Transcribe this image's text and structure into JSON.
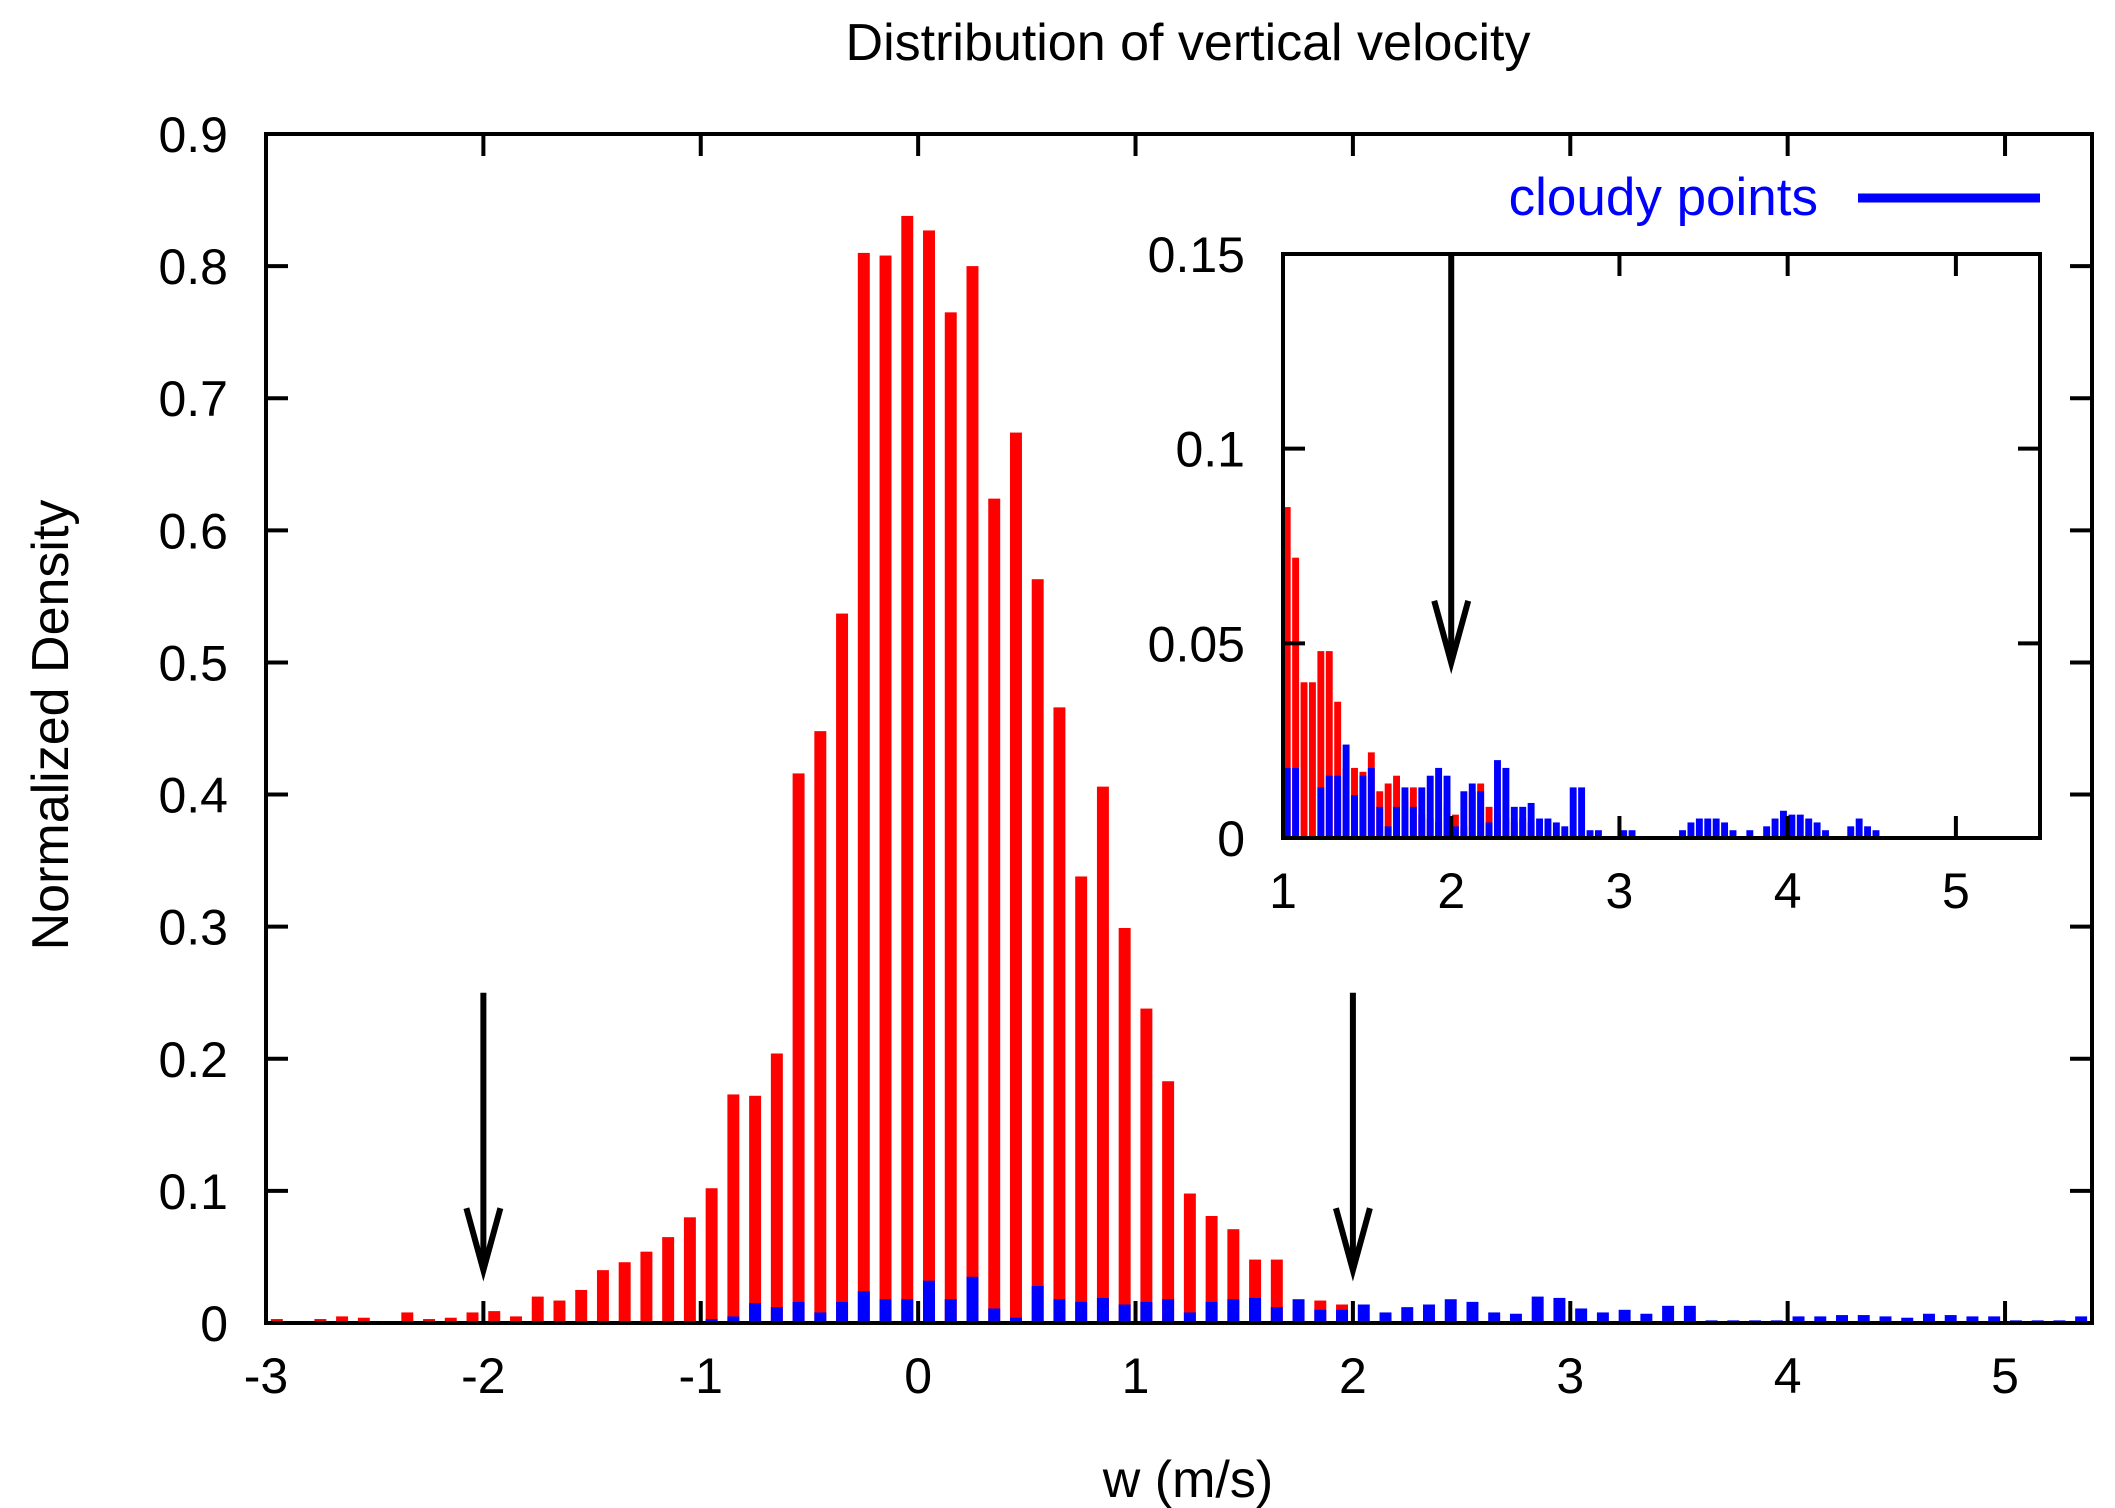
{
  "chart_data": [
    {
      "type": "bar",
      "title": "Distribution of vertical velocity",
      "xlabel": "w (m/s)",
      "ylabel": "Normalized Density",
      "xlim": [
        -3,
        5.4
      ],
      "ylim": [
        0,
        0.9
      ],
      "xticks": [
        -3,
        -2,
        -1,
        0,
        1,
        2,
        3,
        4,
        5
      ],
      "xtick_labels": [
        "-3",
        "-2",
        "-1",
        "0",
        "1",
        "2",
        "3",
        "4",
        "5"
      ],
      "yticks": [
        0,
        0.1,
        0.2,
        0.3,
        0.4,
        0.5,
        0.6,
        0.7,
        0.8,
        0.9
      ],
      "ytick_labels": [
        "0",
        "0.1",
        "0.2",
        "0.3",
        "0.4",
        "0.5",
        "0.6",
        "0.7",
        "0.8",
        "0.9"
      ],
      "bin_width": 0.1,
      "grid": false,
      "legend_position": "top-right",
      "series": [
        {
          "color": "#ff0000",
          "x": [
            -2.95,
            -2.75,
            -2.65,
            -2.55,
            -2.35,
            -2.25,
            -2.15,
            -2.05,
            -1.95,
            -1.85,
            -1.75,
            -1.65,
            -1.55,
            -1.45,
            -1.35,
            -1.25,
            -1.15,
            -1.05,
            -0.95,
            -0.85,
            -0.75,
            -0.65,
            -0.55,
            -0.45,
            -0.35,
            -0.25,
            -0.15,
            -0.05,
            0.05,
            0.15,
            0.25,
            0.35,
            0.45,
            0.55,
            0.65,
            0.75,
            0.85,
            0.95,
            1.05,
            1.15,
            1.25,
            1.35,
            1.45,
            1.55,
            1.65,
            1.75,
            1.85,
            1.95
          ],
          "values": [
            0.003,
            0.003,
            0.005,
            0.004,
            0.008,
            0.003,
            0.004,
            0.008,
            0.009,
            0.005,
            0.02,
            0.017,
            0.025,
            0.04,
            0.046,
            0.054,
            0.065,
            0.08,
            0.102,
            0.173,
            0.172,
            0.204,
            0.416,
            0.448,
            0.537,
            0.81,
            0.808,
            0.838,
            0.827,
            0.765,
            0.8,
            0.624,
            0.674,
            0.563,
            0.466,
            0.338,
            0.406,
            0.299,
            0.238,
            0.183,
            0.098,
            0.081,
            0.071,
            0.048,
            0.048,
            0.011,
            0.017,
            0.014
          ]
        },
        {
          "name": "cloudy points",
          "color": "#0000ff",
          "x": [
            -0.95,
            -0.85,
            -0.75,
            -0.65,
            -0.55,
            -0.45,
            -0.35,
            -0.25,
            -0.15,
            -0.05,
            0.05,
            0.15,
            0.25,
            0.35,
            0.45,
            0.55,
            0.65,
            0.75,
            0.85,
            0.95,
            1.05,
            1.15,
            1.25,
            1.35,
            1.45,
            1.55,
            1.65,
            1.75,
            1.85,
            1.95,
            2.05,
            2.15,
            2.25,
            2.35,
            2.45,
            2.55,
            2.65,
            2.75,
            2.85,
            2.95,
            3.05,
            3.15,
            3.25,
            3.35,
            3.45,
            3.55,
            3.65,
            3.75,
            3.85,
            3.95,
            4.05,
            4.15,
            4.25,
            4.35,
            4.45,
            4.55,
            4.65,
            4.75,
            4.85,
            4.95,
            5.05,
            5.15,
            5.25,
            5.35
          ],
          "values": [
            0.003,
            0.005,
            0.015,
            0.012,
            0.016,
            0.008,
            0.016,
            0.024,
            0.018,
            0.018,
            0.032,
            0.018,
            0.035,
            0.011,
            0.004,
            0.028,
            0.018,
            0.016,
            0.019,
            0.014,
            0.016,
            0.018,
            0.008,
            0.016,
            0.018,
            0.019,
            0.012,
            0.018,
            0.01,
            0.01,
            0.014,
            0.008,
            0.012,
            0.014,
            0.018,
            0.016,
            0.008,
            0.007,
            0.02,
            0.019,
            0.011,
            0.008,
            0.01,
            0.007,
            0.013,
            0.013,
            0.002,
            0.002,
            0.002,
            0.002,
            0.005,
            0.005,
            0.006,
            0.006,
            0.005,
            0.004,
            0.007,
            0.006,
            0.005,
            0.005,
            0.002,
            0.002,
            0.002,
            0.005
          ]
        }
      ],
      "annotations": [
        {
          "type": "arrow-down",
          "x": -2,
          "from_y": 0.25,
          "to_y": 0.04
        },
        {
          "type": "arrow-down",
          "x": 2,
          "from_y": 0.25,
          "to_y": 0.04
        }
      ]
    },
    {
      "type": "bar",
      "title": "",
      "xlabel": "",
      "ylabel": "",
      "xlim": [
        1,
        5.5
      ],
      "ylim": [
        0,
        0.15
      ],
      "xticks": [
        1,
        2,
        3,
        4,
        5
      ],
      "xtick_labels": [
        "1",
        "2",
        "3",
        "4",
        "5"
      ],
      "yticks": [
        0,
        0.05,
        0.1,
        0.15
      ],
      "ytick_labels": [
        "0",
        "0.05",
        "0.1",
        "0.15"
      ],
      "bin_width": 0.05,
      "grid": false,
      "series": [
        {
          "color": "#ff0000",
          "x": [
            1.025,
            1.075,
            1.125,
            1.175,
            1.225,
            1.275,
            1.325,
            1.375,
            1.425,
            1.475,
            1.525,
            1.575,
            1.625,
            1.675,
            1.725,
            1.775,
            1.825,
            1.875,
            1.925,
            1.975,
            2.025,
            2.075,
            2.125,
            2.175,
            2.225,
            2.275,
            2.325,
            2.375,
            2.425,
            2.475
          ],
          "values": [
            0.085,
            0.072,
            0.04,
            0.04,
            0.048,
            0.048,
            0.035,
            0.018,
            0.018,
            0.017,
            0.022,
            0.012,
            0.014,
            0.016,
            0.01,
            0.013,
            0.006,
            0.005,
            0.004,
            0.008,
            0.006,
            0.003,
            0.012,
            0.014,
            0.008,
            0.006,
            0.005,
            0.004,
            0.005,
            0.004
          ]
        },
        {
          "name": "cloudy points",
          "color": "#0000ff",
          "x": [
            1.025,
            1.075,
            1.125,
            1.175,
            1.225,
            1.275,
            1.325,
            1.375,
            1.425,
            1.475,
            1.525,
            1.575,
            1.625,
            1.675,
            1.725,
            1.775,
            1.825,
            1.875,
            1.925,
            1.975,
            2.025,
            2.075,
            2.125,
            2.175,
            2.225,
            2.275,
            2.325,
            2.375,
            2.425,
            2.475,
            2.525,
            2.575,
            2.625,
            2.675,
            2.725,
            2.775,
            2.825,
            2.875,
            2.925,
            2.975,
            3.025,
            3.075,
            3.125,
            3.175,
            3.225,
            3.275,
            3.325,
            3.375,
            3.425,
            3.475,
            3.525,
            3.575,
            3.625,
            3.675,
            3.725,
            3.775,
            3.825,
            3.875,
            3.925,
            3.975,
            4.025,
            4.075,
            4.125,
            4.175,
            4.225,
            4.275,
            4.325,
            4.375,
            4.425,
            4.475,
            4.525,
            4.575,
            4.625,
            4.675,
            4.725,
            4.775,
            4.825,
            4.875,
            4.925,
            4.975,
            5.025,
            5.075,
            5.125,
            5.175,
            5.225,
            5.275,
            5.325,
            5.375,
            5.425
          ],
          "values": [
            0.018,
            0.018,
            0.0,
            0.0,
            0.013,
            0.016,
            0.016,
            0.024,
            0.011,
            0.016,
            0.018,
            0.008,
            0.003,
            0.008,
            0.013,
            0.008,
            0.013,
            0.016,
            0.018,
            0.016,
            0.003,
            0.012,
            0.014,
            0.012,
            0.004,
            0.02,
            0.018,
            0.008,
            0.008,
            0.009,
            0.005,
            0.005,
            0.004,
            0.003,
            0.013,
            0.013,
            0.002,
            0.002,
            0.0,
            0.0,
            0.002,
            0.002,
            0.0,
            0.0,
            0.0,
            0.0,
            0.0,
            0.002,
            0.004,
            0.005,
            0.005,
            0.005,
            0.004,
            0.002,
            0.0,
            0.002,
            0.0,
            0.003,
            0.005,
            0.007,
            0.006,
            0.006,
            0.005,
            0.004,
            0.002,
            0.0,
            0.0,
            0.003,
            0.005,
            0.003,
            0.002,
            0.0,
            0.0,
            0.0,
            0.0,
            0.0,
            0.0,
            0.0,
            0.0,
            0.0,
            0.0,
            0.0,
            0.0,
            0.0,
            0.0,
            0.0,
            0.0,
            0.0,
            0.0
          ]
        }
      ],
      "annotations": [
        {
          "type": "arrow-down",
          "x": 2,
          "from_y": 0.15,
          "to_y": 0.045
        }
      ]
    }
  ],
  "legend": {
    "label": "cloudy points",
    "color": "#0000ff"
  }
}
